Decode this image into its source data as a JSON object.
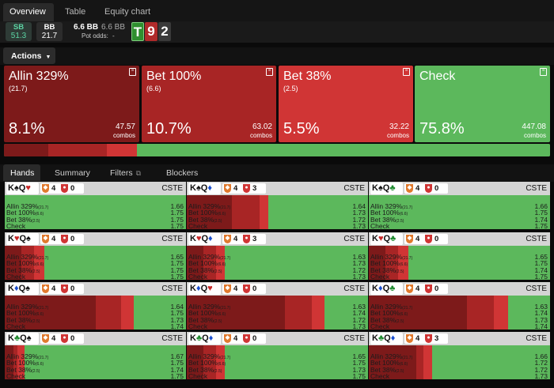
{
  "tabs": [
    "Overview",
    "Table",
    "Equity chart"
  ],
  "positions": [
    {
      "label": "SB",
      "value": "51.3"
    },
    {
      "label": "BB",
      "value": "21.7"
    }
  ],
  "pot": {
    "main": "6.6 BB",
    "secondary": "6.6 BB",
    "odds_label": "Pot odds:",
    "odds_value": "-"
  },
  "board": [
    "T",
    "9",
    "2"
  ],
  "actions_label": "Actions",
  "actions": [
    {
      "name": "Allin 329%",
      "size": "(21.7)",
      "pct": "8.1%",
      "combos": "47.57",
      "combos_word": "combos",
      "color": "#7d1a1a"
    },
    {
      "name": "Bet 100%",
      "size": "(6.6)",
      "pct": "10.7%",
      "combos": "63.02",
      "combos_word": "combos",
      "color": "#a82525"
    },
    {
      "name": "Bet 38%",
      "size": "(2.5)",
      "pct": "5.5%",
      "combos": "32.22",
      "combos_word": "combos",
      "color": "#d03535"
    },
    {
      "name": "Check",
      "size": "",
      "pct": "75.8%",
      "combos": "447.08",
      "combos_word": "combos",
      "color": "#5cb85c"
    }
  ],
  "subtabs": [
    "Hands",
    "Summary",
    "Filters",
    "Blockers"
  ],
  "cste": "CSTE",
  "line_labels": [
    {
      "main": "Allin 329%",
      "small": "(21.7)"
    },
    {
      "main": "Bet 100%",
      "small": "(6.6)"
    },
    {
      "main": "Bet 38%",
      "small": "(2.5)"
    },
    {
      "main": "Check",
      "small": ""
    }
  ],
  "hands": [
    {
      "r1": "K",
      "s1": "♠",
      "r2": "Q",
      "s2": "♥",
      "b1": "4",
      "b2": "0",
      "vals": [
        "1.66",
        "1.75",
        "1.75",
        "1.75"
      ],
      "mix": [
        0,
        0,
        0,
        1
      ]
    },
    {
      "r1": "K",
      "s1": "♠",
      "r2": "Q",
      "s2": "♦",
      "b1": "4",
      "b2": "3",
      "vals": [
        "1.64",
        "1.73",
        "1.72",
        "1.73"
      ],
      "mix": [
        0.25,
        0.15,
        0.05,
        0.55
      ]
    },
    {
      "r1": "K",
      "s1": "♠",
      "r2": "Q",
      "s2": "♣",
      "b1": "4",
      "b2": "0",
      "vals": [
        "1.66",
        "1.75",
        "1.74",
        "1.75"
      ],
      "mix": [
        0,
        0,
        0,
        1
      ]
    },
    {
      "r1": "K",
      "s1": "♥",
      "r2": "Q",
      "s2": "♠",
      "b1": "4",
      "b2": "0",
      "vals": [
        "1.65",
        "1.75",
        "1.75",
        "1.75"
      ],
      "mix": [
        0.09,
        0.07,
        0.06,
        0.78
      ]
    },
    {
      "r1": "K",
      "s1": "♥",
      "r2": "Q",
      "s2": "♦",
      "b1": "4",
      "b2": "3",
      "vals": [
        "1.63",
        "1.73",
        "1.72",
        "1.73"
      ],
      "mix": [
        0.09,
        0.07,
        0.05,
        0.79
      ]
    },
    {
      "r1": "K",
      "s1": "♥",
      "r2": "Q",
      "s2": "♣",
      "b1": "4",
      "b2": "0",
      "vals": [
        "1.65",
        "1.75",
        "1.74",
        "1.75"
      ],
      "mix": [
        0.09,
        0.07,
        0.06,
        0.78
      ]
    },
    {
      "r1": "K",
      "s1": "♦",
      "r2": "Q",
      "s2": "♠",
      "b1": "4",
      "b2": "0",
      "vals": [
        "1.64",
        "1.75",
        "1.73",
        "1.74"
      ],
      "mix": [
        0.5,
        0.14,
        0.07,
        0.29
      ]
    },
    {
      "r1": "K",
      "s1": "♦",
      "r2": "Q",
      "s2": "♥",
      "b1": "4",
      "b2": "0",
      "vals": [
        "1.63",
        "1.74",
        "1.72",
        "1.73"
      ],
      "mix": [
        0.54,
        0.15,
        0.07,
        0.24
      ]
    },
    {
      "r1": "K",
      "s1": "♦",
      "r2": "Q",
      "s2": "♣",
      "b1": "4",
      "b2": "0",
      "vals": [
        "1.63",
        "1.74",
        "1.73",
        "1.74"
      ],
      "mix": [
        0.54,
        0.15,
        0.08,
        0.23
      ]
    },
    {
      "r1": "K",
      "s1": "♣",
      "r2": "Q",
      "s2": "♠",
      "b1": "4",
      "b2": "0",
      "vals": [
        "1.67",
        "1.75",
        "1.74",
        "1.75"
      ],
      "mix": [
        0.05,
        0.02,
        0.04,
        0.89
      ]
    },
    {
      "r1": "K",
      "s1": "♣",
      "r2": "Q",
      "s2": "♦",
      "b1": "4",
      "b2": "0",
      "vals": [
        "1.65",
        "1.75",
        "1.73",
        "1.75"
      ],
      "mix": [
        0.09,
        0.07,
        0.05,
        0.79
      ]
    },
    {
      "r1": "K",
      "s1": "♣",
      "r2": "Q",
      "s2": "♦",
      "b1": "4",
      "b2": "3",
      "vals": [
        "1.66",
        "1.72",
        "1.72",
        "1.73"
      ],
      "mix": [
        0.26,
        0.04,
        0.05,
        0.65
      ]
    }
  ]
}
